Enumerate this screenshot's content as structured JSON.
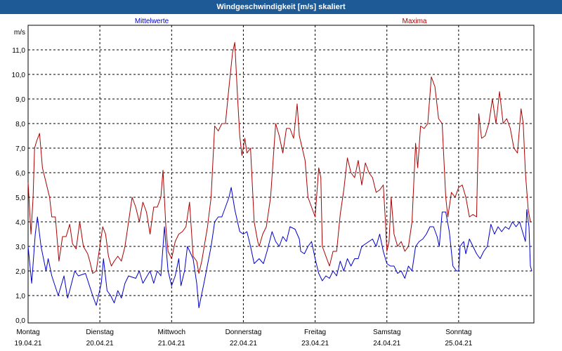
{
  "window": {
    "title": "Windgeschwindigkeit [m/s] skaliert"
  },
  "chart_data": {
    "type": "line",
    "title": "Windgeschwindigkeit [m/s] skaliert",
    "ylabel": "m/s",
    "ylim": [
      0,
      11.5
    ],
    "y_ticks": [
      "0,0",
      "1,0",
      "2,0",
      "3,0",
      "4,0",
      "5,0",
      "6,0",
      "7,0",
      "8,0",
      "9,0",
      "10,0",
      "11,0"
    ],
    "x_range_days": [
      0,
      7
    ],
    "days": [
      {
        "name": "Montag",
        "date": "19.04.21"
      },
      {
        "name": "Dienstag",
        "date": "20.04.21"
      },
      {
        "name": "Mittwoch",
        "date": "21.04.21"
      },
      {
        "name": "Donnerstag",
        "date": "22.04.21"
      },
      {
        "name": "Freitag",
        "date": "23.04.21"
      },
      {
        "name": "Samstag",
        "date": "24.04.21"
      },
      {
        "name": "Sonntag",
        "date": "25.04.21"
      }
    ],
    "grid": true,
    "series": [
      {
        "name": "Mittelwerte",
        "color": "#0000cc",
        "points": [
          [
            0.0,
            3.0
          ],
          [
            0.05,
            1.5
          ],
          [
            0.1,
            3.5
          ],
          [
            0.13,
            4.2
          ],
          [
            0.18,
            3.0
          ],
          [
            0.25,
            2.0
          ],
          [
            0.28,
            2.5
          ],
          [
            0.33,
            1.8
          ],
          [
            0.42,
            1.0
          ],
          [
            0.5,
            1.8
          ],
          [
            0.55,
            0.9
          ],
          [
            0.58,
            1.2
          ],
          [
            0.65,
            2.0
          ],
          [
            0.7,
            1.8
          ],
          [
            0.8,
            1.9
          ],
          [
            0.9,
            1.0
          ],
          [
            0.95,
            0.6
          ],
          [
            1.02,
            1.5
          ],
          [
            1.05,
            2.5
          ],
          [
            1.1,
            1.2
          ],
          [
            1.15,
            1.0
          ],
          [
            1.2,
            0.7
          ],
          [
            1.25,
            1.2
          ],
          [
            1.3,
            0.9
          ],
          [
            1.35,
            1.5
          ],
          [
            1.4,
            1.8
          ],
          [
            1.5,
            1.7
          ],
          [
            1.55,
            2.0
          ],
          [
            1.6,
            1.5
          ],
          [
            1.7,
            2.0
          ],
          [
            1.75,
            1.5
          ],
          [
            1.8,
            2.0
          ],
          [
            1.85,
            1.8
          ],
          [
            1.9,
            3.8
          ],
          [
            1.95,
            2.0
          ],
          [
            2.0,
            1.4
          ],
          [
            2.05,
            1.8
          ],
          [
            2.1,
            2.5
          ],
          [
            2.13,
            1.4
          ],
          [
            2.18,
            2.0
          ],
          [
            2.22,
            3.0
          ],
          [
            2.3,
            2.5
          ],
          [
            2.35,
            1.5
          ],
          [
            2.38,
            0.5
          ],
          [
            2.45,
            1.5
          ],
          [
            2.55,
            3.0
          ],
          [
            2.6,
            4.0
          ],
          [
            2.65,
            4.2
          ],
          [
            2.7,
            4.2
          ],
          [
            2.8,
            5.0
          ],
          [
            2.83,
            5.4
          ],
          [
            2.88,
            4.5
          ],
          [
            2.95,
            3.6
          ],
          [
            3.0,
            3.5
          ],
          [
            3.05,
            3.6
          ],
          [
            3.1,
            3.0
          ],
          [
            3.15,
            2.3
          ],
          [
            3.22,
            2.5
          ],
          [
            3.28,
            2.3
          ],
          [
            3.33,
            2.8
          ],
          [
            3.4,
            3.6
          ],
          [
            3.45,
            3.2
          ],
          [
            3.5,
            3.0
          ],
          [
            3.55,
            3.4
          ],
          [
            3.6,
            3.2
          ],
          [
            3.65,
            3.8
          ],
          [
            3.72,
            3.7
          ],
          [
            3.78,
            3.3
          ],
          [
            3.8,
            2.8
          ],
          [
            3.85,
            2.7
          ],
          [
            3.9,
            3.0
          ],
          [
            3.95,
            3.2
          ],
          [
            4.0,
            2.5
          ],
          [
            4.05,
            1.9
          ],
          [
            4.1,
            1.6
          ],
          [
            4.15,
            1.8
          ],
          [
            4.2,
            1.7
          ],
          [
            4.25,
            2.0
          ],
          [
            4.3,
            1.8
          ],
          [
            4.35,
            2.4
          ],
          [
            4.4,
            2.0
          ],
          [
            4.45,
            2.5
          ],
          [
            4.5,
            2.2
          ],
          [
            4.55,
            2.5
          ],
          [
            4.6,
            2.5
          ],
          [
            4.65,
            3.0
          ],
          [
            4.75,
            3.2
          ],
          [
            4.8,
            3.3
          ],
          [
            4.85,
            3.0
          ],
          [
            4.9,
            3.5
          ],
          [
            4.95,
            2.8
          ],
          [
            5.0,
            2.3
          ],
          [
            5.05,
            2.2
          ],
          [
            5.1,
            2.2
          ],
          [
            5.15,
            1.9
          ],
          [
            5.2,
            2.0
          ],
          [
            5.25,
            1.7
          ],
          [
            5.3,
            2.2
          ],
          [
            5.35,
            2.0
          ],
          [
            5.4,
            3.0
          ],
          [
            5.45,
            3.2
          ],
          [
            5.5,
            3.3
          ],
          [
            5.55,
            3.5
          ],
          [
            5.6,
            3.8
          ],
          [
            5.65,
            3.8
          ],
          [
            5.7,
            3.4
          ],
          [
            5.73,
            3.0
          ],
          [
            5.77,
            4.4
          ],
          [
            5.82,
            4.4
          ],
          [
            5.87,
            3.6
          ],
          [
            5.92,
            2.2
          ],
          [
            5.97,
            2.0
          ],
          [
            6.0,
            2.0
          ],
          [
            6.02,
            3.0
          ],
          [
            6.07,
            3.2
          ],
          [
            6.1,
            2.7
          ],
          [
            6.15,
            3.3
          ],
          [
            6.2,
            3.0
          ],
          [
            6.25,
            2.7
          ],
          [
            6.3,
            2.5
          ],
          [
            6.35,
            2.8
          ],
          [
            6.4,
            3.0
          ],
          [
            6.45,
            3.9
          ],
          [
            6.5,
            3.5
          ],
          [
            6.55,
            3.8
          ],
          [
            6.6,
            3.6
          ],
          [
            6.65,
            3.8
          ],
          [
            6.7,
            3.7
          ],
          [
            6.75,
            4.0
          ],
          [
            6.8,
            3.8
          ],
          [
            6.85,
            4.0
          ],
          [
            6.9,
            3.5
          ],
          [
            6.93,
            3.2
          ],
          [
            6.95,
            4.5
          ],
          [
            6.98,
            3.8
          ],
          [
            7.0,
            2.2
          ],
          [
            7.02,
            2.0
          ]
        ]
      },
      {
        "name": "Maxima",
        "color": "#aa0000",
        "points": [
          [
            0.0,
            5.6
          ],
          [
            0.04,
            3.5
          ],
          [
            0.07,
            5.0
          ],
          [
            0.09,
            7.0
          ],
          [
            0.12,
            7.3
          ],
          [
            0.16,
            7.6
          ],
          [
            0.2,
            6.2
          ],
          [
            0.25,
            5.6
          ],
          [
            0.3,
            5.0
          ],
          [
            0.33,
            4.2
          ],
          [
            0.38,
            4.2
          ],
          [
            0.43,
            2.4
          ],
          [
            0.48,
            3.4
          ],
          [
            0.53,
            3.4
          ],
          [
            0.58,
            3.9
          ],
          [
            0.62,
            3.1
          ],
          [
            0.67,
            2.9
          ],
          [
            0.72,
            4.0
          ],
          [
            0.77,
            3.0
          ],
          [
            0.83,
            2.7
          ],
          [
            0.86,
            2.4
          ],
          [
            0.9,
            1.9
          ],
          [
            0.95,
            2.0
          ],
          [
            1.0,
            3.0
          ],
          [
            1.04,
            3.8
          ],
          [
            1.08,
            3.5
          ],
          [
            1.12,
            2.6
          ],
          [
            1.16,
            2.2
          ],
          [
            1.2,
            2.4
          ],
          [
            1.25,
            2.6
          ],
          [
            1.3,
            2.4
          ],
          [
            1.35,
            3.0
          ],
          [
            1.4,
            4.0
          ],
          [
            1.45,
            5.0
          ],
          [
            1.5,
            4.6
          ],
          [
            1.55,
            4.0
          ],
          [
            1.6,
            4.8
          ],
          [
            1.65,
            4.4
          ],
          [
            1.7,
            3.5
          ],
          [
            1.75,
            4.6
          ],
          [
            1.8,
            4.6
          ],
          [
            1.85,
            5.0
          ],
          [
            1.88,
            6.1
          ],
          [
            1.92,
            3.8
          ],
          [
            1.95,
            2.8
          ],
          [
            2.0,
            2.5
          ],
          [
            2.05,
            3.2
          ],
          [
            2.1,
            3.5
          ],
          [
            2.15,
            3.6
          ],
          [
            2.2,
            3.8
          ],
          [
            2.25,
            4.8
          ],
          [
            2.3,
            2.6
          ],
          [
            2.35,
            2.4
          ],
          [
            2.38,
            1.9
          ],
          [
            2.42,
            2.4
          ],
          [
            2.5,
            3.8
          ],
          [
            2.55,
            5.0
          ],
          [
            2.6,
            7.9
          ],
          [
            2.65,
            7.7
          ],
          [
            2.7,
            8.0
          ],
          [
            2.75,
            8.0
          ],
          [
            2.8,
            9.5
          ],
          [
            2.85,
            10.9
          ],
          [
            2.88,
            11.3
          ],
          [
            2.92,
            9.0
          ],
          [
            2.95,
            7.5
          ],
          [
            2.98,
            6.7
          ],
          [
            3.02,
            7.4
          ],
          [
            3.05,
            6.8
          ],
          [
            3.1,
            7.0
          ],
          [
            3.15,
            4.0
          ],
          [
            3.2,
            3.2
          ],
          [
            3.22,
            3.0
          ],
          [
            3.27,
            3.5
          ],
          [
            3.32,
            3.8
          ],
          [
            3.38,
            5.0
          ],
          [
            3.45,
            8.0
          ],
          [
            3.5,
            7.5
          ],
          [
            3.55,
            6.8
          ],
          [
            3.6,
            7.8
          ],
          [
            3.65,
            7.8
          ],
          [
            3.7,
            7.4
          ],
          [
            3.75,
            8.8
          ],
          [
            3.78,
            7.5
          ],
          [
            3.82,
            7.0
          ],
          [
            3.86,
            6.5
          ],
          [
            3.9,
            5.0
          ],
          [
            3.95,
            4.6
          ],
          [
            4.0,
            4.2
          ],
          [
            4.05,
            6.2
          ],
          [
            4.08,
            5.8
          ],
          [
            4.1,
            3.0
          ],
          [
            4.15,
            2.6
          ],
          [
            4.2,
            2.2
          ],
          [
            4.25,
            2.8
          ],
          [
            4.3,
            2.8
          ],
          [
            4.35,
            4.3
          ],
          [
            4.4,
            5.3
          ],
          [
            4.45,
            6.6
          ],
          [
            4.5,
            6.0
          ],
          [
            4.55,
            5.8
          ],
          [
            4.6,
            6.5
          ],
          [
            4.65,
            5.5
          ],
          [
            4.7,
            6.4
          ],
          [
            4.75,
            6.0
          ],
          [
            4.8,
            5.8
          ],
          [
            4.85,
            5.2
          ],
          [
            4.9,
            5.3
          ],
          [
            4.95,
            5.5
          ],
          [
            4.98,
            4.0
          ],
          [
            5.0,
            2.8
          ],
          [
            5.03,
            3.2
          ],
          [
            5.06,
            5.0
          ],
          [
            5.1,
            3.5
          ],
          [
            5.15,
            3.0
          ],
          [
            5.2,
            3.2
          ],
          [
            5.25,
            2.8
          ],
          [
            5.3,
            3.0
          ],
          [
            5.35,
            4.0
          ],
          [
            5.4,
            7.2
          ],
          [
            5.43,
            6.2
          ],
          [
            5.47,
            7.9
          ],
          [
            5.52,
            7.8
          ],
          [
            5.57,
            8.0
          ],
          [
            5.62,
            9.9
          ],
          [
            5.67,
            9.5
          ],
          [
            5.72,
            8.2
          ],
          [
            5.77,
            8.0
          ],
          [
            5.82,
            5.0
          ],
          [
            5.85,
            4.2
          ],
          [
            5.9,
            5.2
          ],
          [
            5.95,
            5.0
          ],
          [
            6.0,
            5.4
          ],
          [
            6.05,
            5.5
          ],
          [
            6.1,
            5.0
          ],
          [
            6.15,
            4.2
          ],
          [
            6.2,
            4.3
          ],
          [
            6.25,
            4.2
          ],
          [
            6.28,
            8.4
          ],
          [
            6.32,
            7.4
          ],
          [
            6.37,
            7.5
          ],
          [
            6.42,
            8.0
          ],
          [
            6.47,
            9.0
          ],
          [
            6.52,
            8.0
          ],
          [
            6.57,
            9.3
          ],
          [
            6.62,
            8.0
          ],
          [
            6.67,
            8.2
          ],
          [
            6.72,
            7.8
          ],
          [
            6.77,
            7.0
          ],
          [
            6.82,
            6.8
          ],
          [
            6.87,
            8.6
          ],
          [
            6.9,
            8.0
          ],
          [
            6.93,
            6.0
          ],
          [
            6.97,
            4.5
          ],
          [
            7.0,
            4.0
          ]
        ]
      }
    ]
  }
}
